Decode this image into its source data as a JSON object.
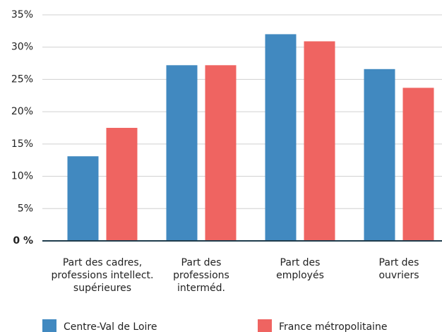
{
  "chart_data": {
    "type": "bar",
    "categories": [
      "Part des cadres,\nprofessions intellect.\nsupérieures",
      "Part des\nprofessions\ninterméd.",
      "Part des\nemployés",
      "Part des\nouvriers"
    ],
    "series": [
      {
        "name": "Centre-Val de Loire",
        "color": "#4189c0",
        "values": [
          13.1,
          27.2,
          32.0,
          26.6
        ]
      },
      {
        "name": "France métropolitaine",
        "color": "#ef6461",
        "values": [
          17.5,
          27.2,
          30.9,
          23.7
        ]
      }
    ],
    "ylim": [
      0,
      35
    ],
    "yticks": [
      {
        "value": 0,
        "label": "0 %"
      },
      {
        "value": 5,
        "label": "5%"
      },
      {
        "value": 10,
        "label": "10%"
      },
      {
        "value": 15,
        "label": "15%"
      },
      {
        "value": 20,
        "label": "20%"
      },
      {
        "value": 25,
        "label": "25%"
      },
      {
        "value": 30,
        "label": "30%"
      },
      {
        "value": 35,
        "label": "35%"
      }
    ],
    "grid": true,
    "legend": "bottom"
  }
}
